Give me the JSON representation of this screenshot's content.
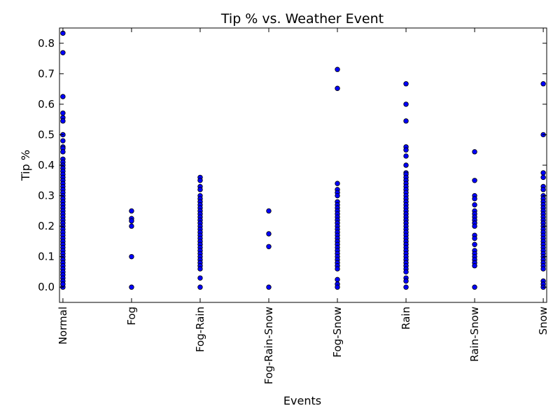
{
  "chart_data": {
    "type": "scatter",
    "title": "Tip % vs. Weather Event",
    "xlabel": "Events",
    "ylabel": "Tip %",
    "categories": [
      "Normal",
      "Fog",
      "Fog-Rain",
      "Fog-Rain-Snow",
      "Fog-Snow",
      "Rain",
      "Rain-Snow",
      "Snow"
    ],
    "xlim": [
      -0.05,
      7.05
    ],
    "ylim": [
      -0.05,
      0.85
    ],
    "yticks": [
      0.0,
      0.1,
      0.2,
      0.3,
      0.4,
      0.5,
      0.6,
      0.7,
      0.8
    ],
    "ytick_labels": [
      "0.0",
      "0.1",
      "0.2",
      "0.3",
      "0.4",
      "0.5",
      "0.6",
      "0.7",
      "0.8"
    ],
    "grid": false,
    "marker_color": "#0000ff",
    "series": [
      {
        "values": [
          [
            0,
            0.0
          ],
          [
            0,
            0.833
          ],
          [
            0,
            0.769
          ],
          [
            0,
            0.625
          ],
          [
            0,
            0.571
          ],
          [
            0,
            0.556
          ],
          [
            0,
            0.545
          ],
          [
            0,
            0.5
          ],
          [
            0,
            0.5
          ],
          [
            0,
            0.48
          ],
          [
            0,
            0.46
          ],
          [
            0,
            0.455
          ],
          [
            0,
            0.444
          ],
          [
            0,
            0.42
          ],
          [
            0,
            0.41
          ],
          [
            0,
            0.4
          ],
          [
            0,
            0.39
          ],
          [
            0,
            0.38
          ],
          [
            0,
            0.37
          ],
          [
            0,
            0.36
          ],
          [
            0,
            0.35
          ],
          [
            0,
            0.34
          ],
          [
            0,
            0.33
          ],
          [
            0,
            0.32
          ],
          [
            0,
            0.31
          ],
          [
            0,
            0.3
          ],
          [
            0,
            0.29
          ],
          [
            0,
            0.28
          ],
          [
            0,
            0.27
          ],
          [
            0,
            0.26
          ],
          [
            0,
            0.25
          ],
          [
            0,
            0.24
          ],
          [
            0,
            0.23
          ],
          [
            0,
            0.22
          ],
          [
            0,
            0.21
          ],
          [
            0,
            0.2
          ],
          [
            0,
            0.19
          ],
          [
            0,
            0.18
          ],
          [
            0,
            0.17
          ],
          [
            0,
            0.16
          ],
          [
            0,
            0.15
          ],
          [
            0,
            0.14
          ],
          [
            0,
            0.13
          ],
          [
            0,
            0.12
          ],
          [
            0,
            0.11
          ],
          [
            0,
            0.1
          ],
          [
            0,
            0.09
          ],
          [
            0,
            0.08
          ],
          [
            0,
            0.07
          ],
          [
            0,
            0.06
          ],
          [
            0,
            0.05
          ],
          [
            0,
            0.04
          ],
          [
            0,
            0.03
          ],
          [
            0,
            0.02
          ],
          [
            0,
            0.01
          ],
          [
            1,
            0.25
          ],
          [
            1,
            0.225
          ],
          [
            1,
            0.217
          ],
          [
            1,
            0.2
          ],
          [
            1,
            0.1
          ],
          [
            1,
            0.0
          ],
          [
            2,
            0.36
          ],
          [
            2,
            0.35
          ],
          [
            2,
            0.33
          ],
          [
            2,
            0.32
          ],
          [
            2,
            0.3
          ],
          [
            2,
            0.29
          ],
          [
            2,
            0.28
          ],
          [
            2,
            0.27
          ],
          [
            2,
            0.26
          ],
          [
            2,
            0.25
          ],
          [
            2,
            0.24
          ],
          [
            2,
            0.23
          ],
          [
            2,
            0.22
          ],
          [
            2,
            0.21
          ],
          [
            2,
            0.2
          ],
          [
            2,
            0.19
          ],
          [
            2,
            0.18
          ],
          [
            2,
            0.17
          ],
          [
            2,
            0.16
          ],
          [
            2,
            0.15
          ],
          [
            2,
            0.14
          ],
          [
            2,
            0.13
          ],
          [
            2,
            0.12
          ],
          [
            2,
            0.11
          ],
          [
            2,
            0.1
          ],
          [
            2,
            0.09
          ],
          [
            2,
            0.08
          ],
          [
            2,
            0.07
          ],
          [
            2,
            0.06
          ],
          [
            2,
            0.03
          ],
          [
            2,
            0.0
          ],
          [
            3,
            0.25
          ],
          [
            3,
            0.175
          ],
          [
            3,
            0.133
          ],
          [
            3,
            0.0
          ],
          [
            4,
            0.714
          ],
          [
            4,
            0.652
          ],
          [
            4,
            0.34
          ],
          [
            4,
            0.32
          ],
          [
            4,
            0.31
          ],
          [
            4,
            0.3
          ],
          [
            4,
            0.28
          ],
          [
            4,
            0.27
          ],
          [
            4,
            0.26
          ],
          [
            4,
            0.25
          ],
          [
            4,
            0.24
          ],
          [
            4,
            0.23
          ],
          [
            4,
            0.22
          ],
          [
            4,
            0.21
          ],
          [
            4,
            0.2
          ],
          [
            4,
            0.19
          ],
          [
            4,
            0.18
          ],
          [
            4,
            0.17
          ],
          [
            4,
            0.16
          ],
          [
            4,
            0.15
          ],
          [
            4,
            0.14
          ],
          [
            4,
            0.13
          ],
          [
            4,
            0.12
          ],
          [
            4,
            0.11
          ],
          [
            4,
            0.1
          ],
          [
            4,
            0.09
          ],
          [
            4,
            0.08
          ],
          [
            4,
            0.07
          ],
          [
            4,
            0.06
          ],
          [
            4,
            0.025
          ],
          [
            4,
            0.01
          ],
          [
            4,
            0.0
          ],
          [
            5,
            0.667
          ],
          [
            5,
            0.6
          ],
          [
            5,
            0.545
          ],
          [
            5,
            0.46
          ],
          [
            5,
            0.45
          ],
          [
            5,
            0.43
          ],
          [
            5,
            0.4
          ],
          [
            5,
            0.375
          ],
          [
            5,
            0.37
          ],
          [
            5,
            0.36
          ],
          [
            5,
            0.35
          ],
          [
            5,
            0.34
          ],
          [
            5,
            0.33
          ],
          [
            5,
            0.32
          ],
          [
            5,
            0.31
          ],
          [
            5,
            0.3
          ],
          [
            5,
            0.29
          ],
          [
            5,
            0.28
          ],
          [
            5,
            0.27
          ],
          [
            5,
            0.26
          ],
          [
            5,
            0.25
          ],
          [
            5,
            0.24
          ],
          [
            5,
            0.23
          ],
          [
            5,
            0.22
          ],
          [
            5,
            0.21
          ],
          [
            5,
            0.2
          ],
          [
            5,
            0.19
          ],
          [
            5,
            0.18
          ],
          [
            5,
            0.17
          ],
          [
            5,
            0.16
          ],
          [
            5,
            0.15
          ],
          [
            5,
            0.14
          ],
          [
            5,
            0.13
          ],
          [
            5,
            0.12
          ],
          [
            5,
            0.11
          ],
          [
            5,
            0.1
          ],
          [
            5,
            0.09
          ],
          [
            5,
            0.08
          ],
          [
            5,
            0.07
          ],
          [
            5,
            0.06
          ],
          [
            5,
            0.05
          ],
          [
            5,
            0.03
          ],
          [
            5,
            0.02
          ],
          [
            5,
            0.0
          ],
          [
            6,
            0.444
          ],
          [
            6,
            0.35
          ],
          [
            6,
            0.3
          ],
          [
            6,
            0.29
          ],
          [
            6,
            0.27
          ],
          [
            6,
            0.25
          ],
          [
            6,
            0.24
          ],
          [
            6,
            0.23
          ],
          [
            6,
            0.22
          ],
          [
            6,
            0.21
          ],
          [
            6,
            0.2
          ],
          [
            6,
            0.17
          ],
          [
            6,
            0.16
          ],
          [
            6,
            0.14
          ],
          [
            6,
            0.12
          ],
          [
            6,
            0.11
          ],
          [
            6,
            0.1
          ],
          [
            6,
            0.09
          ],
          [
            6,
            0.08
          ],
          [
            6,
            0.07
          ],
          [
            6,
            0.0
          ],
          [
            7,
            0.667
          ],
          [
            7,
            0.5
          ],
          [
            7,
            0.375
          ],
          [
            7,
            0.36
          ],
          [
            7,
            0.33
          ],
          [
            7,
            0.32
          ],
          [
            7,
            0.3
          ],
          [
            7,
            0.29
          ],
          [
            7,
            0.28
          ],
          [
            7,
            0.27
          ],
          [
            7,
            0.26
          ],
          [
            7,
            0.25
          ],
          [
            7,
            0.24
          ],
          [
            7,
            0.23
          ],
          [
            7,
            0.22
          ],
          [
            7,
            0.21
          ],
          [
            7,
            0.2
          ],
          [
            7,
            0.19
          ],
          [
            7,
            0.18
          ],
          [
            7,
            0.17
          ],
          [
            7,
            0.16
          ],
          [
            7,
            0.15
          ],
          [
            7,
            0.14
          ],
          [
            7,
            0.13
          ],
          [
            7,
            0.12
          ],
          [
            7,
            0.11
          ],
          [
            7,
            0.1
          ],
          [
            7,
            0.09
          ],
          [
            7,
            0.08
          ],
          [
            7,
            0.07
          ],
          [
            7,
            0.06
          ],
          [
            7,
            0.02
          ],
          [
            7,
            0.01
          ],
          [
            7,
            0.0
          ]
        ]
      }
    ]
  }
}
